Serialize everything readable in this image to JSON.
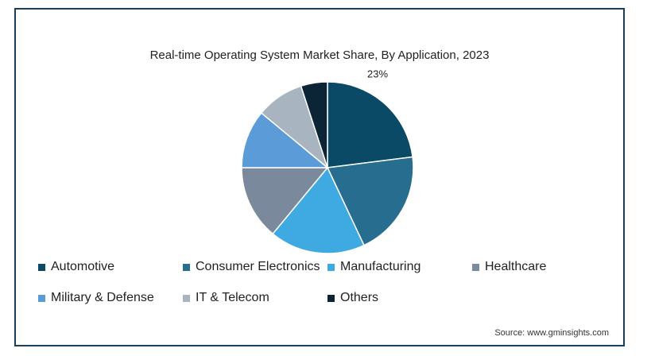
{
  "chart_data": {
    "type": "pie",
    "title": "Real-time Operating System Market Share, By Application, 2023",
    "categories": [
      "Automotive",
      "Consumer Electronics",
      "Manufacturing",
      "Healthcare",
      "Military & Defense",
      "IT & Telecom",
      "Others"
    ],
    "values": [
      23,
      20,
      18,
      14,
      11,
      9,
      5
    ],
    "colors": [
      "#0a4a67",
      "#266d8f",
      "#3fa9e1",
      "#7a8a9c",
      "#5a9bd8",
      "#a8b4bf",
      "#0b2537"
    ],
    "data_labels": [
      "23%",
      "",
      "",
      "",
      "",
      "",
      ""
    ],
    "legend_position": "bottom"
  },
  "legend": {
    "items": [
      {
        "label": "Automotive",
        "color": "#0a4a67"
      },
      {
        "label": "Consumer Electronics",
        "color": "#266d8f"
      },
      {
        "label": "Manufacturing",
        "color": "#3fa9e1"
      },
      {
        "label": "Healthcare",
        "color": "#7a8a9c"
      },
      {
        "label": "Military & Defense",
        "color": "#5a9bd8"
      },
      {
        "label": "IT & Telecom",
        "color": "#a8b4bf"
      },
      {
        "label": "Others",
        "color": "#0b2537"
      }
    ]
  },
  "source": "Source: www.gminsights.com"
}
